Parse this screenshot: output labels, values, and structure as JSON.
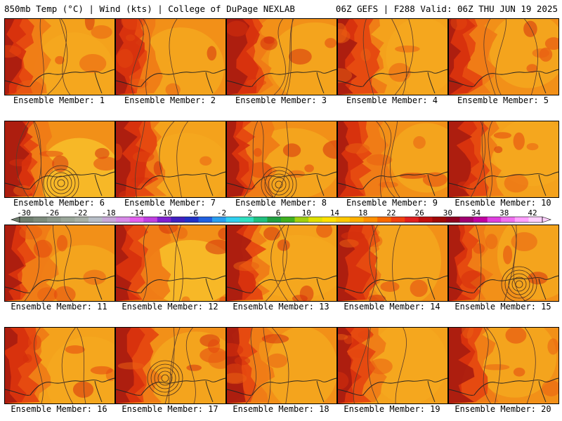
{
  "header": {
    "left_title": "850mb Temp (°C) | Wind (kts) | College of DuPage NEXLAB",
    "right_title": "06Z GEFS | F288 Valid: 06Z THU JUN 19 2025"
  },
  "members": [
    {
      "label": "Ensemble Member: 1"
    },
    {
      "label": "Ensemble Member: 2"
    },
    {
      "label": "Ensemble Member: 3"
    },
    {
      "label": "Ensemble Member: 4"
    },
    {
      "label": "Ensemble Member: 5"
    },
    {
      "label": "Ensemble Member: 6"
    },
    {
      "label": "Ensemble Member: 7"
    },
    {
      "label": "Ensemble Member: 8"
    },
    {
      "label": "Ensemble Member: 9"
    },
    {
      "label": "Ensemble Member: 10"
    },
    {
      "label": "Ensemble Member: 11"
    },
    {
      "label": "Ensemble Member: 12"
    },
    {
      "label": "Ensemble Member: 13"
    },
    {
      "label": "Ensemble Member: 14"
    },
    {
      "label": "Ensemble Member: 15"
    },
    {
      "label": "Ensemble Member: 16"
    },
    {
      "label": "Ensemble Member: 17"
    },
    {
      "label": "Ensemble Member: 18"
    },
    {
      "label": "Ensemble Member: 19"
    },
    {
      "label": "Ensemble Member: 20"
    }
  ],
  "colorbar": {
    "tick_labels": [
      "-30",
      "-26",
      "-22",
      "-18",
      "-14",
      "-10",
      "-6",
      "-2",
      "2",
      "6",
      "10",
      "14",
      "18",
      "22",
      "26",
      "30",
      "34",
      "38",
      "42"
    ],
    "colors": [
      "#6f7f6f",
      "#7d8c7d",
      "#8d9a8d",
      "#9aa79a",
      "#a7b0a7",
      "#b8bfc8",
      "#c7a8d8",
      "#d88ae8",
      "#e45ff0",
      "#c040e0",
      "#8020d0",
      "#4020c0",
      "#2030c8",
      "#2060e0",
      "#2a9ff0",
      "#30d0f0",
      "#30e0c0",
      "#20c080",
      "#20a040",
      "#40b020",
      "#a0d010",
      "#e0e000",
      "#ffe000",
      "#ffc800",
      "#ffb000",
      "#ff9000",
      "#f86a00",
      "#f04010",
      "#e02020",
      "#c01010",
      "#a00808",
      "#900020",
      "#a00070",
      "#c000a0",
      "#e040e0",
      "#f070f0",
      "#ffa0ff",
      "#ffd0ff"
    ]
  }
}
